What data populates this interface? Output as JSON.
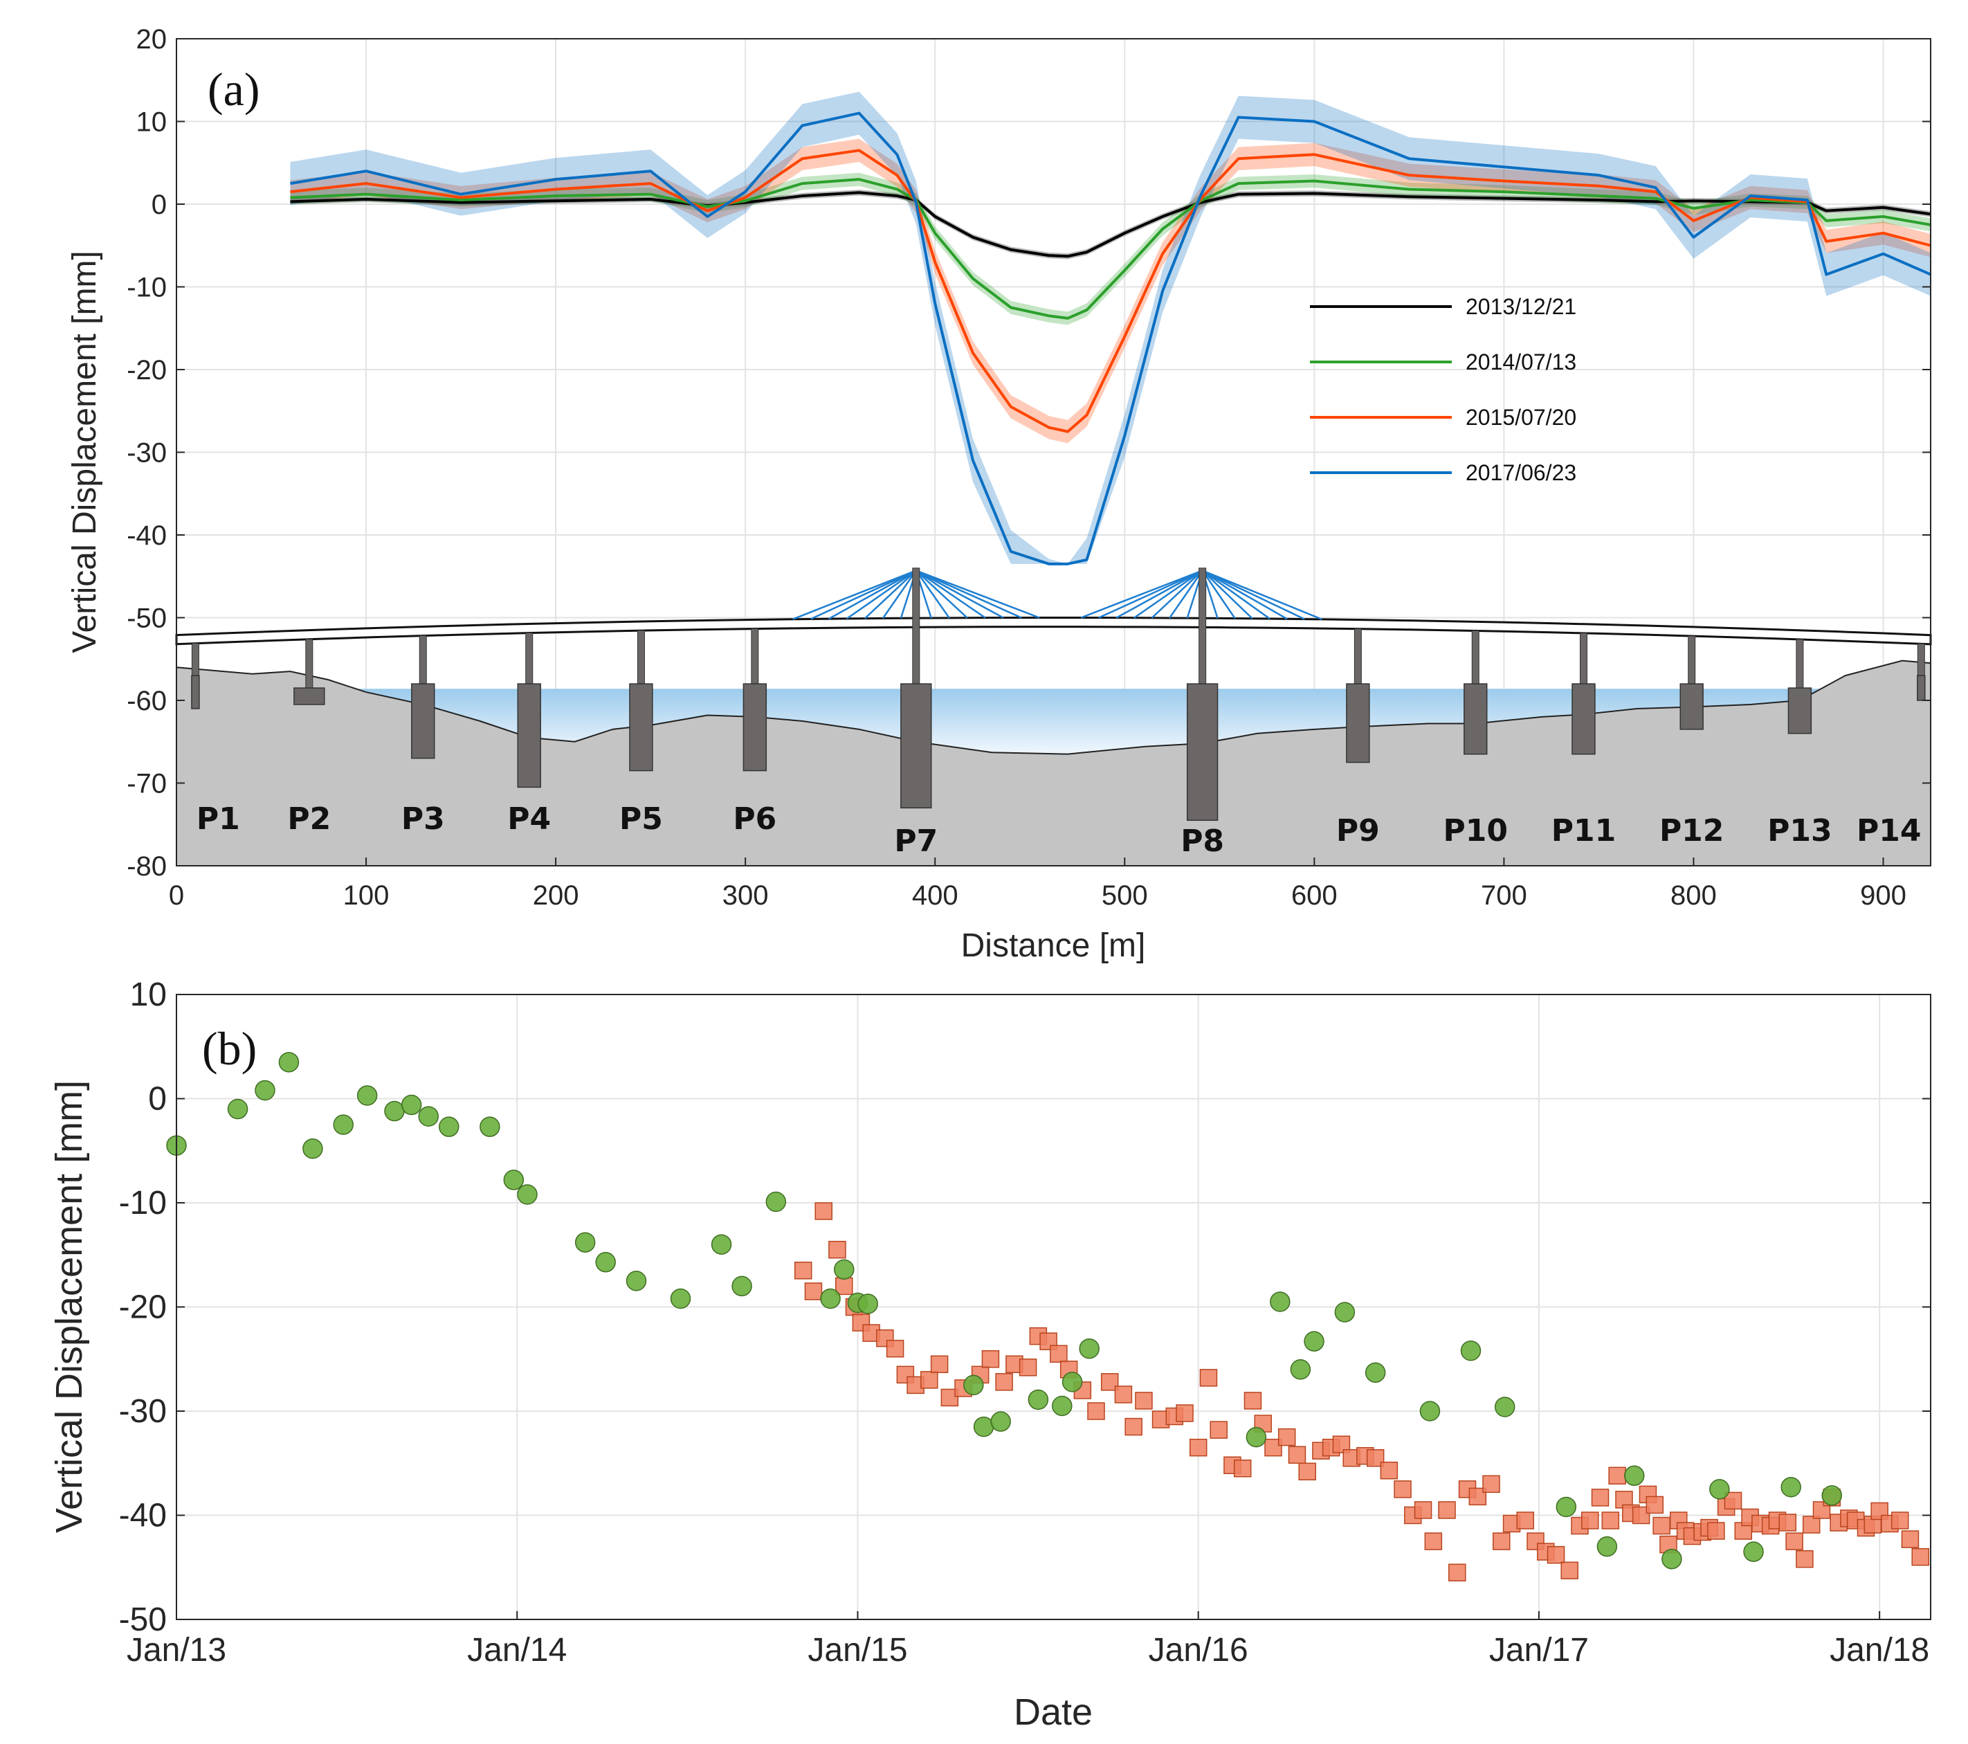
{
  "chart_data": [
    {
      "panel": "(a)",
      "type": "line",
      "xlabel": "Distance [m]",
      "ylabel": "Vertical Displacement [mm]",
      "xlim": [
        0,
        925
      ],
      "ylim": [
        -80,
        20
      ],
      "xticks": [
        0,
        100,
        200,
        300,
        400,
        500,
        600,
        700,
        800,
        900
      ],
      "yticks": [
        20,
        10,
        0,
        -10,
        -20,
        -30,
        -40,
        -50,
        -60,
        -70,
        -80
      ],
      "grid": true,
      "legend_position": "center-right",
      "series": [
        {
          "name": "2013/12/21",
          "color": "#000000",
          "x": [
            60,
            100,
            150,
            200,
            250,
            280,
            300,
            330,
            360,
            380,
            390,
            400,
            420,
            440,
            460,
            470,
            480,
            500,
            520,
            540,
            560,
            600,
            650,
            700,
            750,
            780,
            800,
            830,
            860,
            870,
            900,
            925
          ],
          "y": [
            0.3,
            0.6,
            0.2,
            0.4,
            0.6,
            -0.2,
            0.2,
            1.0,
            1.4,
            1.0,
            0.5,
            -1.5,
            -4.0,
            -5.5,
            -6.2,
            -6.3,
            -5.8,
            -3.5,
            -1.5,
            0.2,
            1.2,
            1.3,
            0.9,
            0.7,
            0.5,
            0.3,
            0.4,
            0.3,
            0.2,
            -0.8,
            -0.4,
            -1.2
          ]
        },
        {
          "name": "2014/07/13",
          "color": "#2ca02c",
          "x": [
            60,
            100,
            150,
            200,
            250,
            280,
            300,
            330,
            360,
            380,
            390,
            400,
            420,
            440,
            460,
            470,
            480,
            500,
            520,
            540,
            560,
            600,
            650,
            700,
            750,
            780,
            800,
            830,
            860,
            870,
            900,
            925
          ],
          "y": [
            0.8,
            1.2,
            0.5,
            1.0,
            1.2,
            -0.3,
            0.4,
            2.5,
            3.0,
            1.8,
            0.5,
            -3.5,
            -9.0,
            -12.5,
            -13.5,
            -13.8,
            -12.8,
            -8.0,
            -3.0,
            0.4,
            2.5,
            2.8,
            1.8,
            1.5,
            1.0,
            0.7,
            -0.5,
            0.5,
            0.2,
            -2.0,
            -1.5,
            -2.5
          ]
        },
        {
          "name": "2015/07/20",
          "color": "#ff4500",
          "x": [
            60,
            100,
            150,
            200,
            250,
            280,
            300,
            330,
            360,
            380,
            390,
            400,
            420,
            440,
            460,
            470,
            480,
            500,
            520,
            540,
            560,
            600,
            650,
            700,
            750,
            780,
            800,
            830,
            860,
            870,
            900,
            925
          ],
          "y": [
            1.5,
            2.5,
            0.8,
            1.8,
            2.5,
            -0.8,
            0.8,
            5.5,
            6.5,
            3.5,
            0.3,
            -7.0,
            -18.0,
            -24.5,
            -27.0,
            -27.5,
            -25.5,
            -16.0,
            -6.0,
            0.6,
            5.5,
            6.0,
            3.5,
            2.8,
            2.2,
            1.5,
            -2.0,
            0.8,
            0.3,
            -4.5,
            -3.5,
            -5.0
          ]
        },
        {
          "name": "2017/06/23",
          "color": "#0a6fc2",
          "x": [
            60,
            100,
            150,
            200,
            250,
            280,
            300,
            330,
            360,
            380,
            390,
            400,
            420,
            440,
            460,
            470,
            480,
            500,
            520,
            540,
            560,
            600,
            650,
            700,
            750,
            780,
            800,
            830,
            860,
            870,
            900,
            925
          ],
          "y": [
            2.5,
            4.0,
            1.2,
            3.0,
            4.0,
            -1.5,
            1.5,
            9.5,
            11.0,
            6.0,
            0.2,
            -12.0,
            -31.0,
            -42.0,
            -45.5,
            -46.5,
            -43.0,
            -28.0,
            -10.5,
            1.0,
            10.5,
            10.0,
            5.5,
            4.5,
            3.5,
            2.0,
            -4.0,
            1.0,
            0.5,
            -8.5,
            -6.0,
            -8.5
          ]
        }
      ],
      "piers": [
        {
          "label": "P1",
          "distance": 10
        },
        {
          "label": "P2",
          "distance": 70
        },
        {
          "label": "P3",
          "distance": 130
        },
        {
          "label": "P4",
          "distance": 186
        },
        {
          "label": "P5",
          "distance": 245
        },
        {
          "label": "P6",
          "distance": 305
        },
        {
          "label": "P7",
          "distance": 390
        },
        {
          "label": "P8",
          "distance": 541
        },
        {
          "label": "P9",
          "distance": 623
        },
        {
          "label": "P10",
          "distance": 685
        },
        {
          "label": "P11",
          "distance": 742
        },
        {
          "label": "P12",
          "distance": 799
        },
        {
          "label": "P13",
          "distance": 856
        },
        {
          "label": "P14",
          "distance": 920
        }
      ]
    },
    {
      "panel": "(b)",
      "type": "scatter",
      "xlabel": "Date",
      "ylabel": "Vertical Displacement [mm]",
      "x_units": "years since Jan/13",
      "xlim": [
        0,
        5.15
      ],
      "ylim": [
        -50,
        10
      ],
      "xticks": [
        0,
        1,
        2,
        3,
        4,
        5
      ],
      "xtick_labels": [
        "Jan/13",
        "Jan/14",
        "Jan/15",
        "Jan/16",
        "Jan/17",
        "Jan/18"
      ],
      "yticks": [
        10,
        0,
        -10,
        -20,
        -30,
        -40,
        -50
      ],
      "grid": true,
      "series": [
        {
          "name": "green circles",
          "marker": "circle",
          "color": "#6aaf3d",
          "x": [
            0.0,
            0.18,
            0.26,
            0.33,
            0.4,
            0.49,
            0.56,
            0.64,
            0.69,
            0.74,
            0.8,
            0.92,
            0.99,
            1.03,
            1.2,
            1.26,
            1.35,
            1.48,
            1.6,
            1.66,
            1.76,
            1.92,
            1.96,
            2.0,
            2.03,
            2.34,
            2.37,
            2.42,
            2.53,
            2.6,
            2.63,
            2.68,
            3.17,
            3.24,
            3.3,
            3.34,
            3.43,
            3.52,
            3.68,
            3.8,
            3.9,
            4.08,
            4.2,
            4.28,
            4.39,
            4.53,
            4.63,
            4.74,
            4.86
          ],
          "y": [
            -4.5,
            -1,
            0.8,
            3.5,
            -4.8,
            -2.5,
            0.3,
            -1.2,
            -0.6,
            -1.7,
            -2.7,
            -2.7,
            -7.8,
            -9.2,
            -13.8,
            -15.7,
            -17.5,
            -19.2,
            -14,
            -18,
            -9.9,
            -19.2,
            -16.4,
            -19.6,
            -19.7,
            -27.5,
            -31.5,
            -31,
            -28.9,
            -29.5,
            -27.2,
            -24,
            -32.5,
            -19.5,
            -26,
            -23.3,
            -20.5,
            -26.3,
            -30,
            -24.2,
            -29.6,
            -39.2,
            -43,
            -36.2,
            -44.2,
            -37.5,
            -43.5,
            -37.3,
            -38.1
          ]
        },
        {
          "name": "orange squares",
          "marker": "square",
          "color": "#f08060",
          "x": [
            1.84,
            1.87,
            1.9,
            1.94,
            1.96,
            1.99,
            2.01,
            2.04,
            2.08,
            2.11,
            2.14,
            2.17,
            2.21,
            2.24,
            2.27,
            2.31,
            2.36,
            2.39,
            2.43,
            2.46,
            2.5,
            2.53,
            2.56,
            2.59,
            2.62,
            2.66,
            2.7,
            2.74,
            2.78,
            2.81,
            2.84,
            2.89,
            2.93,
            2.96,
            3.0,
            3.03,
            3.06,
            3.1,
            3.13,
            3.16,
            3.19,
            3.22,
            3.26,
            3.29,
            3.32,
            3.36,
            3.39,
            3.42,
            3.45,
            3.49,
            3.52,
            3.56,
            3.6,
            3.63,
            3.66,
            3.69,
            3.73,
            3.76,
            3.79,
            3.82,
            3.86,
            3.89,
            3.92,
            3.96,
            3.99,
            4.02,
            4.05,
            4.09,
            4.12,
            4.15,
            4.18,
            4.21,
            4.23,
            4.25,
            4.27,
            4.3,
            4.32,
            4.34,
            4.36,
            4.38,
            4.41,
            4.43,
            4.45,
            4.48,
            4.5,
            4.52,
            4.55,
            4.57,
            4.6,
            4.62,
            4.65,
            4.68,
            4.7,
            4.73,
            4.75,
            4.78,
            4.8,
            4.83,
            4.86,
            4.88,
            4.91,
            4.93,
            4.96,
            4.98,
            5.0,
            5.03,
            5.06,
            5.09,
            5.12
          ],
          "y": [
            -16.5,
            -18.5,
            -10.8,
            -14.5,
            -18,
            -20,
            -21.5,
            -22.5,
            -23,
            -24,
            -26.5,
            -27.5,
            -27,
            -25.5,
            -28.7,
            -27.8,
            -26.5,
            -25,
            -27.2,
            -25.5,
            -25.8,
            -22.8,
            -23.3,
            -24.5,
            -26,
            -28,
            -30,
            -27.2,
            -28.4,
            -31.5,
            -29,
            -30.8,
            -30.5,
            -30.2,
            -33.5,
            -26.8,
            -31.8,
            -35.2,
            -35.5,
            -29,
            -31.2,
            -33.5,
            -32.5,
            -34.2,
            -35.8,
            -33.8,
            -33.5,
            -33.2,
            -34.5,
            -34.3,
            -34.5,
            -35.7,
            -37.5,
            -40,
            -39.5,
            -42.5,
            -39.5,
            -45.5,
            -37.5,
            -38.2,
            -37,
            -42.5,
            -40.8,
            -40.5,
            -42.5,
            -43.5,
            -43.8,
            -45.3,
            -41,
            -40.5,
            -38.3,
            -40.5,
            -36.2,
            -38.5,
            -39.8,
            -40,
            -38,
            -39,
            -41,
            -42.8,
            -40.5,
            -41.5,
            -42,
            -41.6,
            -41.2,
            -41.5,
            -39.2,
            -38.6,
            -41.5,
            -40.2,
            -40.8,
            -41,
            -40.5,
            -40.7,
            -42.5,
            -44.2,
            -40.9,
            -39.5,
            -38.3,
            -40.7,
            -40.3,
            -40.5,
            -41.2,
            -40.9,
            -39.6,
            -40.8,
            -40.5,
            -42.3,
            -44
          ]
        }
      ]
    }
  ],
  "panel_a": {
    "tag": "(a)",
    "xlabel": "Distance [m]",
    "ylabel": "Vertical Displacement [mm]"
  },
  "panel_b": {
    "tag": "(b)",
    "xlabel": "Date",
    "ylabel": "Vertical Displacement [mm]"
  },
  "colors": {
    "water": "#bcdcf2",
    "ground": "#c4c4c4",
    "pier": "#6b6767",
    "cable": "#1f7fd0"
  }
}
